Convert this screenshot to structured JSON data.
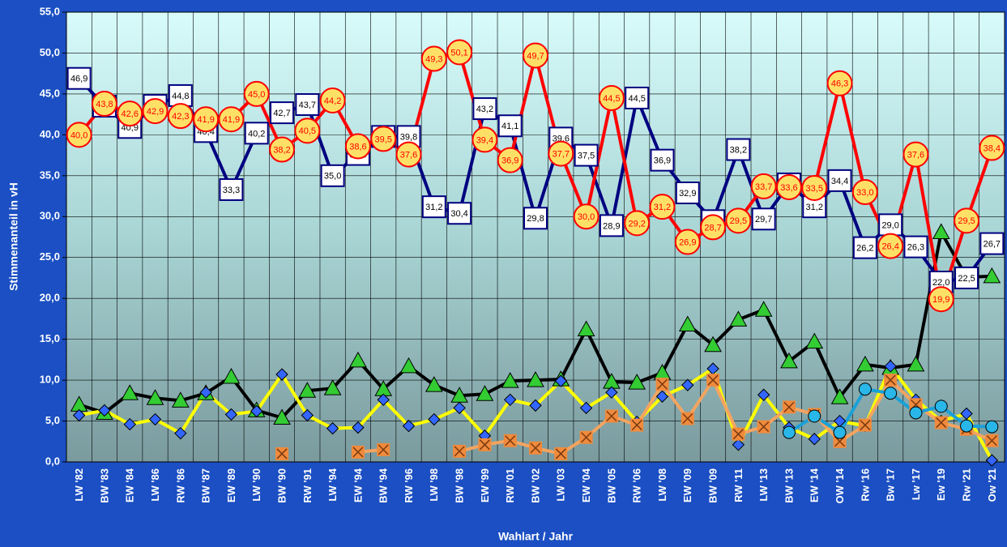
{
  "chart_data": {
    "type": "line",
    "xlabel": "Wahlart / Jahr",
    "ylabel": "Stimmenanteil in vH",
    "categories": [
      "LW '82",
      "BW '83",
      "EW '84",
      "LW '86",
      "RW '86",
      "BW '87",
      "EW '89",
      "LW '90",
      "BW '90",
      "RW '91",
      "LW '94",
      "EW '94",
      "BW '94",
      "RW '96",
      "LW '98",
      "BW '98",
      "EW '99",
      "RW '01",
      "BW '02",
      "LW '03",
      "EW '04",
      "BW '05",
      "RW '06",
      "LW '08",
      "EW '09",
      "BW '09",
      "RW '11",
      "LW '13",
      "BW '13",
      "EW '14",
      "OW '14",
      "Rw '16",
      "Bw '17",
      "Lw '17",
      "Ew '19",
      "Rw '21",
      "Ow '21"
    ],
    "ylim": [
      0,
      55
    ],
    "yticks": [
      {
        "value": 0,
        "label": "0,0"
      },
      {
        "value": 5,
        "label": "5,0"
      },
      {
        "value": 10,
        "label": "10,0"
      },
      {
        "value": 15,
        "label": "15,0"
      },
      {
        "value": 20,
        "label": "20,0"
      },
      {
        "value": 25,
        "label": "25,0"
      },
      {
        "value": 30,
        "label": "30,0"
      },
      {
        "value": 35,
        "label": "35,0"
      },
      {
        "value": 40,
        "label": "40,0"
      },
      {
        "value": 45,
        "label": "45,0"
      },
      {
        "value": 50,
        "label": "50,0"
      },
      {
        "value": 55,
        "label": "55,0"
      }
    ],
    "grid": true,
    "series": [
      {
        "color": "#000080",
        "marker": "square",
        "marker_color": "#ffffff",
        "values": [
          46.9,
          43.5,
          40.9,
          43.6,
          44.8,
          40.4,
          33.3,
          40.2,
          42.7,
          43.7,
          35.0,
          37.6,
          39.8,
          39.8,
          31.2,
          30.4,
          43.2,
          41.1,
          29.8,
          39.6,
          37.5,
          28.9,
          44.5,
          36.9,
          32.9,
          29.5,
          38.2,
          29.7,
          34.0,
          31.2,
          34.4,
          26.2,
          29.0,
          26.3,
          22.0,
          22.5,
          26.7
        ],
        "value_labels": [
          "46,9",
          "43,5",
          "40,9",
          "43,6",
          "44,8",
          "40,4",
          "33,3",
          "40,2",
          "42,7",
          "43,7",
          "35,0",
          "37,6",
          "39,8",
          "39,8",
          "31,2",
          "30,4",
          "43,2",
          "41,1",
          "29,8",
          "39,6",
          "37,5",
          "28,9",
          "44,5",
          "36,9",
          "32,9",
          "29,5",
          "38,2",
          "29,7",
          "34,0",
          "31,2",
          "34,4",
          "26,2",
          "29,0",
          "26,3",
          "22,0",
          "22,5",
          "26,7"
        ]
      },
      {
        "color": "#ff0000",
        "marker": "circle",
        "marker_color": "#ffe066",
        "values": [
          40.0,
          43.8,
          42.6,
          42.9,
          42.3,
          41.9,
          41.9,
          45.0,
          38.2,
          40.5,
          44.2,
          38.6,
          39.5,
          37.6,
          49.3,
          50.1,
          39.4,
          36.9,
          49.7,
          37.7,
          30.0,
          44.5,
          29.2,
          31.2,
          26.9,
          28.7,
          29.5,
          33.7,
          33.6,
          33.5,
          46.3,
          33.0,
          26.4,
          37.6,
          19.9,
          29.5,
          38.4
        ],
        "value_labels": [
          "40,0",
          "43,8",
          "42,6",
          "42,9",
          "42,3",
          "41,9",
          "41,9",
          "45,0",
          "38,2",
          "40,5",
          "44,2",
          "38,6",
          "39,5",
          "37,6",
          "49,3",
          "50,1",
          "39,4",
          "36,9",
          "49,7",
          "37,7",
          "30,0",
          "44,5",
          "29,2",
          "31,2",
          "26,9",
          "28,7",
          "29,5",
          "33,7",
          "33,6",
          "33,5",
          "46,3",
          "33,0",
          "26,4",
          "37,6",
          "19,9",
          "29,5",
          "38,4"
        ]
      },
      {
        "color": "#000000",
        "marker": "triangle",
        "marker_color": "#33cc33",
        "values": [
          7.0,
          6.0,
          8.4,
          7.8,
          7.5,
          8.4,
          10.4,
          6.3,
          5.4,
          8.7,
          9.0,
          12.4,
          8.9,
          11.7,
          9.4,
          8.1,
          8.3,
          9.9,
          10.0,
          10.1,
          16.2,
          9.8,
          9.7,
          10.9,
          16.8,
          14.3,
          17.4,
          18.6,
          12.3,
          14.7,
          7.9,
          11.9,
          11.5,
          11.9,
          28.1,
          22.6,
          22.7
        ]
      },
      {
        "color": "#ffff00",
        "marker": "diamond",
        "marker_color": "#3366ff",
        "values": [
          5.7,
          6.3,
          4.6,
          5.2,
          3.5,
          8.5,
          5.8,
          6.2,
          10.7,
          5.7,
          4.1,
          4.2,
          7.6,
          4.4,
          5.2,
          6.6,
          3.2,
          7.6,
          6.9,
          9.9,
          6.6,
          8.5,
          4.9,
          8.0,
          9.4,
          11.4,
          2.1,
          8.2,
          4.2,
          2.8,
          5.0,
          4.4,
          11.7,
          7.6,
          5.0,
          5.9,
          0.2
        ]
      },
      {
        "color": "#f4a460",
        "marker": "cross",
        "marker_color": "#f08a3c",
        "values": [
          null,
          null,
          null,
          null,
          null,
          null,
          null,
          null,
          1.0,
          null,
          null,
          1.2,
          1.5,
          null,
          null,
          1.3,
          2.1,
          2.6,
          1.7,
          1.0,
          3.0,
          5.6,
          4.5,
          9.5,
          5.3,
          10.0,
          3.4,
          4.3,
          6.7,
          5.8,
          2.5,
          4.5,
          10.0,
          7.0,
          4.8,
          4.0,
          2.6
        ]
      },
      {
        "color": "#1aa0d8",
        "marker": "circle",
        "marker_color": "#29b6e8",
        "values": [
          null,
          null,
          null,
          null,
          null,
          null,
          null,
          null,
          null,
          null,
          null,
          null,
          null,
          null,
          null,
          null,
          null,
          null,
          null,
          null,
          null,
          null,
          null,
          null,
          null,
          null,
          null,
          null,
          3.6,
          5.6,
          3.6,
          8.9,
          8.4,
          6.0,
          6.8,
          4.4,
          4.3
        ]
      }
    ]
  }
}
